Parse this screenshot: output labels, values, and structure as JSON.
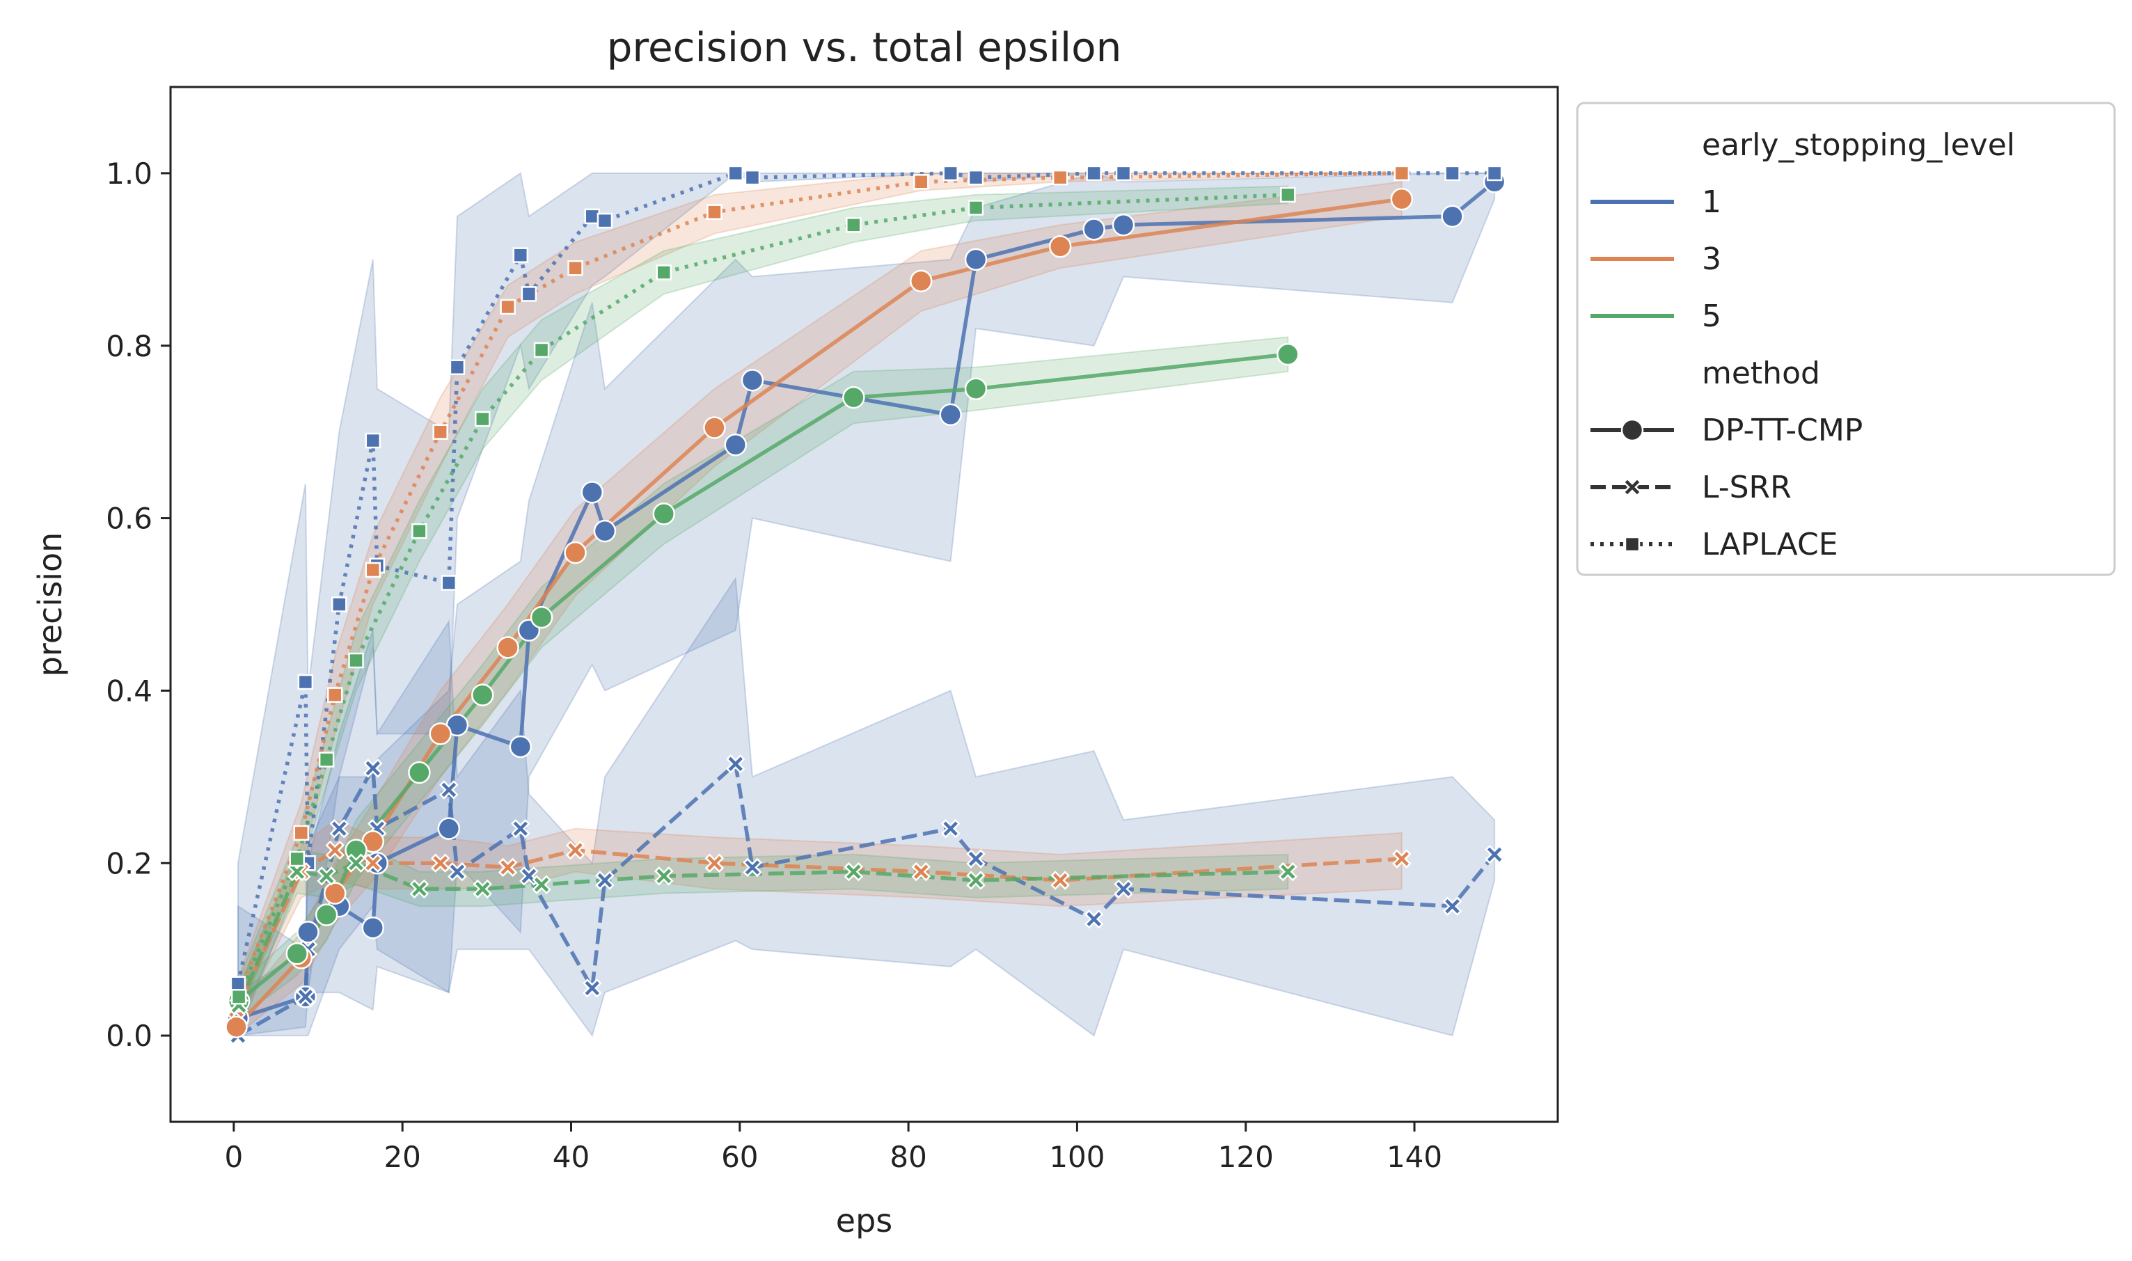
{
  "chart_data": {
    "type": "line",
    "title": "precision vs. total epsilon",
    "xlabel": "eps",
    "ylabel": "precision",
    "xlim": [
      -7.5,
      157
    ],
    "ylim": [
      -0.1,
      1.1
    ],
    "xticks": [
      0,
      20,
      40,
      60,
      80,
      100,
      120,
      140
    ],
    "yticks": [
      0.0,
      0.2,
      0.4,
      0.6,
      0.8,
      1.0
    ],
    "grid": false,
    "legend": {
      "placement": "outside-right-top",
      "hue_title": "early_stopping_level",
      "style_title": "method",
      "hue_entries": [
        {
          "label": "1",
          "color": "#4c72b0"
        },
        {
          "label": "3",
          "color": "#dd8452"
        },
        {
          "label": "5",
          "color": "#55a868"
        }
      ],
      "style_entries": [
        {
          "label": "DP-TT-CMP",
          "dash": "solid",
          "marker": "circle"
        },
        {
          "label": "L-SRR",
          "dash": "dashed",
          "marker": "x"
        },
        {
          "label": "LAPLACE",
          "dash": "dotted",
          "marker": "square"
        }
      ]
    },
    "series": [
      {
        "level": "1",
        "method": "DP-TT-CMP",
        "color": "#4c72b0",
        "points": [
          [
            0.5,
            0.02
          ],
          [
            8.5,
            0.045
          ],
          [
            8.8,
            0.12
          ],
          [
            12.5,
            0.15
          ],
          [
            16.5,
            0.125
          ],
          [
            17,
            0.2
          ],
          [
            25.5,
            0.24
          ],
          [
            26.5,
            0.36
          ],
          [
            34,
            0.335
          ],
          [
            35,
            0.47
          ],
          [
            42.5,
            0.63
          ],
          [
            44,
            0.585
          ],
          [
            59.5,
            0.685
          ],
          [
            61.5,
            0.76
          ],
          [
            85,
            0.72
          ],
          [
            88,
            0.9
          ],
          [
            102,
            0.935
          ],
          [
            105.5,
            0.94
          ],
          [
            144.5,
            0.95
          ],
          [
            149.5,
            0.99
          ]
        ],
        "band": [
          [
            0.5,
            0.0,
            0.15
          ],
          [
            8.5,
            0.01,
            0.1
          ],
          [
            8.8,
            0.05,
            0.22
          ],
          [
            12.5,
            0.05,
            0.3
          ],
          [
            16.5,
            0.03,
            0.3
          ],
          [
            17,
            0.08,
            0.32
          ],
          [
            25.5,
            0.05,
            0.4
          ],
          [
            26.5,
            0.2,
            0.5
          ],
          [
            34,
            0.12,
            0.55
          ],
          [
            35,
            0.3,
            0.62
          ],
          [
            42.5,
            0.43,
            0.85
          ],
          [
            44,
            0.4,
            0.75
          ],
          [
            59.5,
            0.47,
            0.9
          ],
          [
            61.5,
            0.6,
            0.88
          ],
          [
            85,
            0.55,
            0.9
          ],
          [
            88,
            0.82,
            0.96
          ],
          [
            102,
            0.8,
            1.0
          ],
          [
            105.5,
            0.88,
            0.99
          ],
          [
            144.5,
            0.85,
            1.0
          ],
          [
            149.5,
            0.97,
            1.0
          ]
        ]
      },
      {
        "level": "1",
        "method": "L-SRR",
        "color": "#4c72b0",
        "points": [
          [
            0.5,
            0.0
          ],
          [
            8.5,
            0.045
          ],
          [
            8.8,
            0.1
          ],
          [
            12.5,
            0.24
          ],
          [
            16.5,
            0.31
          ],
          [
            17,
            0.24
          ],
          [
            25.5,
            0.285
          ],
          [
            26.5,
            0.19
          ],
          [
            34,
            0.24
          ],
          [
            35,
            0.185
          ],
          [
            42.5,
            0.055
          ],
          [
            44,
            0.18
          ],
          [
            59.5,
            0.315
          ],
          [
            61.5,
            0.195
          ],
          [
            85,
            0.24
          ],
          [
            88,
            0.205
          ],
          [
            102,
            0.135
          ],
          [
            105.5,
            0.17
          ],
          [
            144.5,
            0.15
          ],
          [
            149.5,
            0.21
          ]
        ],
        "band": [
          [
            0.5,
            0.0,
            0.05
          ],
          [
            8.5,
            0.0,
            0.1
          ],
          [
            8.8,
            0.0,
            0.2
          ],
          [
            12.5,
            0.1,
            0.35
          ],
          [
            16.5,
            0.15,
            0.47
          ],
          [
            17,
            0.1,
            0.35
          ],
          [
            25.5,
            0.05,
            0.48
          ],
          [
            26.5,
            0.1,
            0.3
          ],
          [
            34,
            0.1,
            0.4
          ],
          [
            35,
            0.1,
            0.28
          ],
          [
            42.5,
            0.0,
            0.2
          ],
          [
            44,
            0.05,
            0.3
          ],
          [
            59.5,
            0.11,
            0.53
          ],
          [
            61.5,
            0.1,
            0.3
          ],
          [
            85,
            0.08,
            0.4
          ],
          [
            88,
            0.1,
            0.3
          ],
          [
            102,
            0.0,
            0.33
          ],
          [
            105.5,
            0.1,
            0.25
          ],
          [
            144.5,
            0.0,
            0.3
          ],
          [
            149.5,
            0.18,
            0.25
          ]
        ]
      },
      {
        "level": "1",
        "method": "LAPLACE",
        "color": "#4c72b0",
        "points": [
          [
            0.5,
            0.06
          ],
          [
            8.5,
            0.41
          ],
          [
            8.8,
            0.2
          ],
          [
            12.5,
            0.5
          ],
          [
            16.5,
            0.69
          ],
          [
            17,
            0.545
          ],
          [
            25.5,
            0.525
          ],
          [
            26.5,
            0.775
          ],
          [
            34,
            0.905
          ],
          [
            35,
            0.86
          ],
          [
            42.5,
            0.95
          ],
          [
            44,
            0.945
          ],
          [
            59.5,
            1.0
          ],
          [
            61.5,
            0.995
          ],
          [
            85,
            1.0
          ],
          [
            88,
            0.995
          ],
          [
            102,
            1.0
          ],
          [
            105.5,
            1.0
          ],
          [
            144.5,
            1.0
          ],
          [
            149.5,
            1.0
          ]
        ],
        "band": [
          [
            0.5,
            0.0,
            0.2
          ],
          [
            8.5,
            0.2,
            0.64
          ],
          [
            8.8,
            0.05,
            0.4
          ],
          [
            12.5,
            0.3,
            0.7
          ],
          [
            16.5,
            0.45,
            0.9
          ],
          [
            17,
            0.35,
            0.75
          ],
          [
            25.5,
            0.35,
            0.7
          ],
          [
            26.5,
            0.6,
            0.95
          ],
          [
            34,
            0.8,
            1.0
          ],
          [
            35,
            0.75,
            0.95
          ],
          [
            42.5,
            0.87,
            1.0
          ],
          [
            44,
            0.88,
            1.0
          ],
          [
            59.5,
            1.0,
            1.0
          ],
          [
            61.5,
            0.99,
            1.0
          ],
          [
            85,
            1.0,
            1.0
          ],
          [
            88,
            0.99,
            1.0
          ],
          [
            102,
            1.0,
            1.0
          ],
          [
            105.5,
            1.0,
            1.0
          ],
          [
            144.5,
            1.0,
            1.0
          ],
          [
            149.5,
            1.0,
            1.0
          ]
        ]
      },
      {
        "level": "3",
        "method": "DP-TT-CMP",
        "color": "#dd8452",
        "points": [
          [
            0.3,
            0.01
          ],
          [
            8,
            0.09
          ],
          [
            12,
            0.165
          ],
          [
            16.5,
            0.225
          ],
          [
            24.5,
            0.35
          ],
          [
            32.5,
            0.45
          ],
          [
            40.5,
            0.56
          ],
          [
            57,
            0.705
          ],
          [
            81.5,
            0.875
          ],
          [
            98,
            0.915
          ],
          [
            138.5,
            0.97
          ]
        ],
        "band": [
          [
            0.3,
            0.0,
            0.03
          ],
          [
            8,
            0.06,
            0.12
          ],
          [
            12,
            0.13,
            0.2
          ],
          [
            16.5,
            0.18,
            0.27
          ],
          [
            24.5,
            0.3,
            0.4
          ],
          [
            32.5,
            0.4,
            0.5
          ],
          [
            40.5,
            0.51,
            0.61
          ],
          [
            57,
            0.66,
            0.75
          ],
          [
            81.5,
            0.84,
            0.91
          ],
          [
            98,
            0.89,
            0.94
          ],
          [
            138.5,
            0.95,
            0.99
          ]
        ]
      },
      {
        "level": "3",
        "method": "L-SRR",
        "color": "#dd8452",
        "points": [
          [
            0.3,
            0.03
          ],
          [
            8,
            0.19
          ],
          [
            12,
            0.215
          ],
          [
            16.5,
            0.2
          ],
          [
            24.5,
            0.2
          ],
          [
            32.5,
            0.195
          ],
          [
            40.5,
            0.215
          ],
          [
            57,
            0.2
          ],
          [
            81.5,
            0.19
          ],
          [
            98,
            0.18
          ],
          [
            138.5,
            0.205
          ]
        ],
        "band": [
          [
            0.3,
            0.01,
            0.05
          ],
          [
            8,
            0.16,
            0.22
          ],
          [
            12,
            0.18,
            0.25
          ],
          [
            16.5,
            0.17,
            0.23
          ],
          [
            24.5,
            0.17,
            0.23
          ],
          [
            32.5,
            0.17,
            0.22
          ],
          [
            40.5,
            0.19,
            0.24
          ],
          [
            57,
            0.17,
            0.23
          ],
          [
            81.5,
            0.16,
            0.22
          ],
          [
            98,
            0.15,
            0.21
          ],
          [
            138.5,
            0.17,
            0.235
          ]
        ]
      },
      {
        "level": "3",
        "method": "LAPLACE",
        "color": "#dd8452",
        "points": [
          [
            0.3,
            0.04
          ],
          [
            8,
            0.235
          ],
          [
            12,
            0.395
          ],
          [
            16.5,
            0.54
          ],
          [
            24.5,
            0.7
          ],
          [
            32.5,
            0.845
          ],
          [
            40.5,
            0.89
          ],
          [
            57,
            0.955
          ],
          [
            81.5,
            0.99
          ],
          [
            98,
            0.995
          ],
          [
            138.5,
            1.0
          ]
        ],
        "band": [
          [
            0.3,
            0.02,
            0.06
          ],
          [
            8,
            0.2,
            0.27
          ],
          [
            12,
            0.35,
            0.44
          ],
          [
            16.5,
            0.5,
            0.58
          ],
          [
            24.5,
            0.66,
            0.74
          ],
          [
            32.5,
            0.81,
            0.87
          ],
          [
            40.5,
            0.86,
            0.92
          ],
          [
            57,
            0.93,
            0.975
          ],
          [
            81.5,
            0.98,
            1.0
          ],
          [
            98,
            0.99,
            1.0
          ],
          [
            138.5,
            1.0,
            1.0
          ]
        ]
      },
      {
        "level": "5",
        "method": "DP-TT-CMP",
        "color": "#55a868",
        "points": [
          [
            0.6,
            0.04
          ],
          [
            7.5,
            0.095
          ],
          [
            11,
            0.14
          ],
          [
            14.5,
            0.215
          ],
          [
            22,
            0.305
          ],
          [
            29.5,
            0.395
          ],
          [
            36.5,
            0.485
          ],
          [
            51,
            0.605
          ],
          [
            73.5,
            0.74
          ],
          [
            88,
            0.75
          ],
          [
            125,
            0.79
          ]
        ],
        "band": [
          [
            0.6,
            0.02,
            0.06
          ],
          [
            7.5,
            0.07,
            0.12
          ],
          [
            11,
            0.11,
            0.17
          ],
          [
            14.5,
            0.18,
            0.25
          ],
          [
            22,
            0.27,
            0.34
          ],
          [
            29.5,
            0.36,
            0.43
          ],
          [
            36.5,
            0.45,
            0.52
          ],
          [
            51,
            0.57,
            0.64
          ],
          [
            73.5,
            0.71,
            0.77
          ],
          [
            88,
            0.725,
            0.775
          ],
          [
            125,
            0.77,
            0.81
          ]
        ]
      },
      {
        "level": "5",
        "method": "L-SRR",
        "color": "#55a868",
        "points": [
          [
            0.6,
            0.035
          ],
          [
            7.5,
            0.19
          ],
          [
            11,
            0.185
          ],
          [
            14.5,
            0.2
          ],
          [
            22,
            0.17
          ],
          [
            29.5,
            0.17
          ],
          [
            36.5,
            0.175
          ],
          [
            51,
            0.185
          ],
          [
            73.5,
            0.19
          ],
          [
            88,
            0.18
          ],
          [
            125,
            0.19
          ]
        ],
        "band": [
          [
            0.6,
            0.015,
            0.055
          ],
          [
            7.5,
            0.165,
            0.215
          ],
          [
            11,
            0.16,
            0.21
          ],
          [
            14.5,
            0.175,
            0.225
          ],
          [
            22,
            0.15,
            0.19
          ],
          [
            29.5,
            0.15,
            0.19
          ],
          [
            36.5,
            0.155,
            0.195
          ],
          [
            51,
            0.165,
            0.205
          ],
          [
            73.5,
            0.17,
            0.21
          ],
          [
            88,
            0.16,
            0.2
          ],
          [
            125,
            0.17,
            0.21
          ]
        ]
      },
      {
        "level": "5",
        "method": "LAPLACE",
        "color": "#55a868",
        "points": [
          [
            0.6,
            0.045
          ],
          [
            7.5,
            0.205
          ],
          [
            11,
            0.32
          ],
          [
            14.5,
            0.435
          ],
          [
            22,
            0.585
          ],
          [
            29.5,
            0.715
          ],
          [
            36.5,
            0.795
          ],
          [
            51,
            0.885
          ],
          [
            73.5,
            0.94
          ],
          [
            88,
            0.96
          ],
          [
            125,
            0.975
          ]
        ],
        "band": [
          [
            0.6,
            0.025,
            0.065
          ],
          [
            7.5,
            0.18,
            0.23
          ],
          [
            11,
            0.29,
            0.35
          ],
          [
            14.5,
            0.4,
            0.47
          ],
          [
            22,
            0.55,
            0.62
          ],
          [
            29.5,
            0.68,
            0.75
          ],
          [
            36.5,
            0.76,
            0.83
          ],
          [
            51,
            0.86,
            0.91
          ],
          [
            73.5,
            0.92,
            0.96
          ],
          [
            88,
            0.945,
            0.975
          ],
          [
            125,
            0.965,
            0.985
          ]
        ]
      }
    ]
  }
}
